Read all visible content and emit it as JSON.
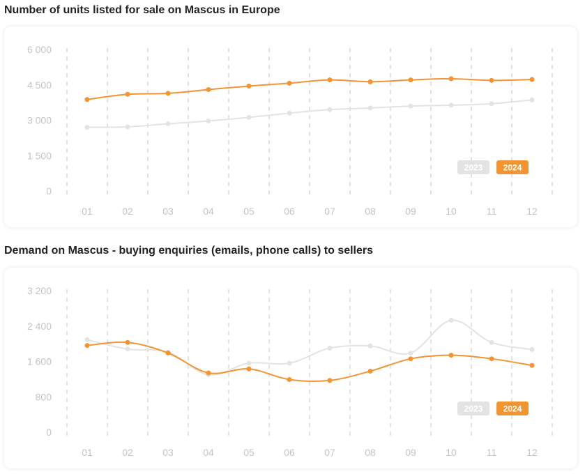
{
  "charts": [
    {
      "heading": "Number of units listed for sale on Mascus in Europe",
      "chart_data": {
        "type": "line",
        "categories": [
          "01",
          "02",
          "03",
          "04",
          "05",
          "06",
          "07",
          "08",
          "09",
          "10",
          "11",
          "12"
        ],
        "y_ticks": [
          "6 000",
          "4 500",
          "3 000",
          "1 500",
          "0"
        ],
        "ylim": [
          0,
          6000
        ],
        "grid": true,
        "legend_position": "bottom-right",
        "series": [
          {
            "name": "2023",
            "color": "#e3e3e3",
            "values": [
              2700,
              2720,
              2850,
              2970,
              3120,
              3300,
              3450,
              3520,
              3600,
              3640,
              3700,
              3860
            ]
          },
          {
            "name": "2024",
            "color": "#f29432",
            "values": [
              3880,
              4100,
              4140,
              4300,
              4450,
              4570,
              4710,
              4630,
              4710,
              4760,
              4690,
              4730
            ]
          }
        ]
      }
    },
    {
      "heading": "Demand on Mascus - buying enquiries (emails, phone calls) to sellers",
      "chart_data": {
        "type": "line",
        "categories": [
          "01",
          "02",
          "03",
          "04",
          "05",
          "06",
          "07",
          "08",
          "09",
          "10",
          "11",
          "12"
        ],
        "y_ticks": [
          "3 200",
          "2 400",
          "1 600",
          "800",
          "0"
        ],
        "ylim": [
          0,
          3200
        ],
        "grid": true,
        "legend_position": "bottom-right",
        "series": [
          {
            "name": "2023",
            "color": "#e3e3e3",
            "values": [
              2090,
              1880,
              1810,
              1300,
              1560,
              1560,
              1900,
              1950,
              1790,
              2530,
              2030,
              1870
            ]
          },
          {
            "name": "2024",
            "color": "#f29432",
            "values": [
              1960,
              2030,
              1790,
              1340,
              1430,
              1190,
              1170,
              1380,
              1660,
              1740,
              1660,
              1510
            ]
          }
        ]
      }
    }
  ]
}
